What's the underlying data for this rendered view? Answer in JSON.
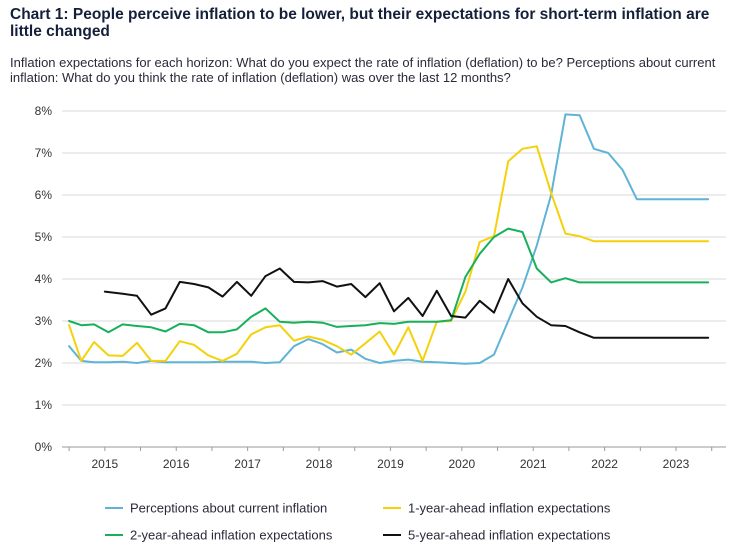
{
  "title": "Chart 1: People perceive inflation to be lower, but their expectations for short-term inflation are little changed",
  "subtitle": "Inflation expectations for each horizon: What do you expect the rate of inflation (deflation) to be? Perceptions about current inflation: What do you think the rate of inflation (deflation) was over the last 12 months?",
  "chart_data": {
    "type": "line",
    "ylim": [
      0,
      8
    ],
    "yticks": [
      0,
      1,
      2,
      3,
      4,
      5,
      6,
      7,
      8
    ],
    "ytick_labels": [
      "0%",
      "1%",
      "2%",
      "3%",
      "4%",
      "5%",
      "6%",
      "7%",
      "8%"
    ],
    "xlim": [
      2014.4,
      2023.7
    ],
    "xticks": [
      2015,
      2016,
      2017,
      2018,
      2019,
      2020,
      2021,
      2022,
      2023
    ],
    "xtick_labels": [
      "2015",
      "2016",
      "2017",
      "2018",
      "2019",
      "2020",
      "2021",
      "2022",
      "2023"
    ],
    "grid": true,
    "legend_position": "bottom",
    "series": [
      {
        "name": "Perceptions about current inflation",
        "color": "#5fb4d6",
        "x": [
          2014.5,
          2014.67,
          2014.85,
          2015.05,
          2015.25,
          2015.45,
          2015.65,
          2015.85,
          2016.05,
          2016.25,
          2016.45,
          2016.65,
          2016.85,
          2017.05,
          2017.25,
          2017.45,
          2017.65,
          2017.85,
          2018.05,
          2018.25,
          2018.45,
          2018.65,
          2018.85,
          2019.05,
          2019.25,
          2019.45,
          2019.65,
          2019.85,
          2020.05,
          2020.25,
          2020.45,
          2020.65,
          2020.85,
          2021.05,
          2021.25,
          2021.45,
          2021.65,
          2021.85,
          2022.05,
          2022.25,
          2022.45,
          2022.65,
          2022.85,
          2023.05,
          2023.25,
          2023.45
        ],
        "y": [
          2.4,
          2.05,
          2.02,
          2.02,
          2.03,
          2.0,
          2.05,
          2.02,
          2.02,
          2.02,
          2.02,
          2.03,
          2.03,
          2.03,
          2.0,
          2.02,
          2.4,
          2.57,
          2.45,
          2.25,
          2.32,
          2.1,
          2.0,
          2.05,
          2.08,
          2.03,
          2.02,
          2.0,
          1.98,
          2.0,
          2.2,
          3.0,
          3.8,
          4.8,
          6.0,
          7.92,
          7.9,
          7.1,
          7.0,
          6.6,
          5.9,
          5.9,
          5.9,
          5.9,
          5.9,
          5.9
        ]
      },
      {
        "name": "1-year-ahead inflation expectations",
        "color": "#f5d10a",
        "x": [
          2014.5,
          2014.67,
          2014.85,
          2015.05,
          2015.25,
          2015.45,
          2015.65,
          2015.85,
          2016.05,
          2016.25,
          2016.45,
          2016.65,
          2016.85,
          2017.05,
          2017.25,
          2017.45,
          2017.65,
          2017.85,
          2018.05,
          2018.25,
          2018.45,
          2018.65,
          2018.85,
          2019.05,
          2019.25,
          2019.45,
          2019.65,
          2019.85,
          2020.05,
          2020.25,
          2020.45,
          2020.65,
          2020.85,
          2021.05,
          2021.25,
          2021.45,
          2021.65,
          2021.85,
          2022.05,
          2022.25,
          2022.45,
          2022.65,
          2022.85,
          2023.05,
          2023.25,
          2023.45
        ],
        "y": [
          2.9,
          2.05,
          2.5,
          2.18,
          2.17,
          2.48,
          2.05,
          2.05,
          2.52,
          2.43,
          2.18,
          2.05,
          2.22,
          2.68,
          2.85,
          2.9,
          2.53,
          2.63,
          2.55,
          2.4,
          2.2,
          2.47,
          2.75,
          2.2,
          2.85,
          2.05,
          2.98,
          3.0,
          3.7,
          4.88,
          5.02,
          6.8,
          7.1,
          7.16,
          6.05,
          5.08,
          5.02,
          4.9,
          4.9,
          4.9,
          4.9,
          4.9,
          4.9,
          4.9,
          4.9,
          4.9
        ]
      },
      {
        "name": "2-year-ahead inflation expectations",
        "color": "#18b05a",
        "x": [
          2014.5,
          2014.67,
          2014.85,
          2015.05,
          2015.25,
          2015.45,
          2015.65,
          2015.85,
          2016.05,
          2016.25,
          2016.45,
          2016.65,
          2016.85,
          2017.05,
          2017.25,
          2017.45,
          2017.65,
          2017.85,
          2018.05,
          2018.25,
          2018.45,
          2018.65,
          2018.85,
          2019.05,
          2019.25,
          2019.45,
          2019.65,
          2019.85,
          2020.05,
          2020.25,
          2020.45,
          2020.65,
          2020.85,
          2021.05,
          2021.25,
          2021.45,
          2021.65,
          2021.85,
          2022.05,
          2022.25,
          2022.45,
          2022.65,
          2022.85,
          2023.05,
          2023.25,
          2023.45
        ],
        "y": [
          3.0,
          2.9,
          2.92,
          2.73,
          2.92,
          2.88,
          2.85,
          2.75,
          2.93,
          2.9,
          2.73,
          2.73,
          2.8,
          3.1,
          3.3,
          2.98,
          2.96,
          2.98,
          2.96,
          2.86,
          2.88,
          2.9,
          2.95,
          2.93,
          2.98,
          2.98,
          2.98,
          3.02,
          4.05,
          4.6,
          5.0,
          5.2,
          5.12,
          4.25,
          3.92,
          4.02,
          3.92,
          3.92,
          3.92,
          3.92,
          3.92,
          3.92,
          3.92,
          3.92,
          3.92,
          3.92
        ]
      },
      {
        "name": "5-year-ahead inflation expectations",
        "color": "#111111",
        "x": [
          2015.0,
          2015.25,
          2015.45,
          2015.65,
          2015.85,
          2016.05,
          2016.25,
          2016.45,
          2016.65,
          2016.85,
          2017.05,
          2017.25,
          2017.45,
          2017.65,
          2017.85,
          2018.05,
          2018.25,
          2018.45,
          2018.65,
          2018.85,
          2019.05,
          2019.25,
          2019.45,
          2019.65,
          2019.85,
          2020.05,
          2020.25,
          2020.45,
          2020.65,
          2020.85,
          2021.05,
          2021.25,
          2021.45,
          2021.65,
          2021.85,
          2022.05,
          2022.25,
          2022.45,
          2022.65,
          2022.85,
          2023.05,
          2023.25,
          2023.45
        ],
        "y": [
          3.7,
          3.65,
          3.6,
          3.15,
          3.3,
          3.93,
          3.88,
          3.8,
          3.58,
          3.93,
          3.6,
          4.07,
          4.25,
          3.93,
          3.92,
          3.95,
          3.82,
          3.88,
          3.57,
          3.9,
          3.23,
          3.55,
          3.12,
          3.72,
          3.12,
          3.08,
          3.48,
          3.2,
          4.0,
          3.42,
          3.1,
          2.9,
          2.88,
          2.73,
          2.6,
          2.6,
          2.6,
          2.6,
          2.6,
          2.6,
          2.6,
          2.6,
          2.6
        ]
      }
    ]
  }
}
